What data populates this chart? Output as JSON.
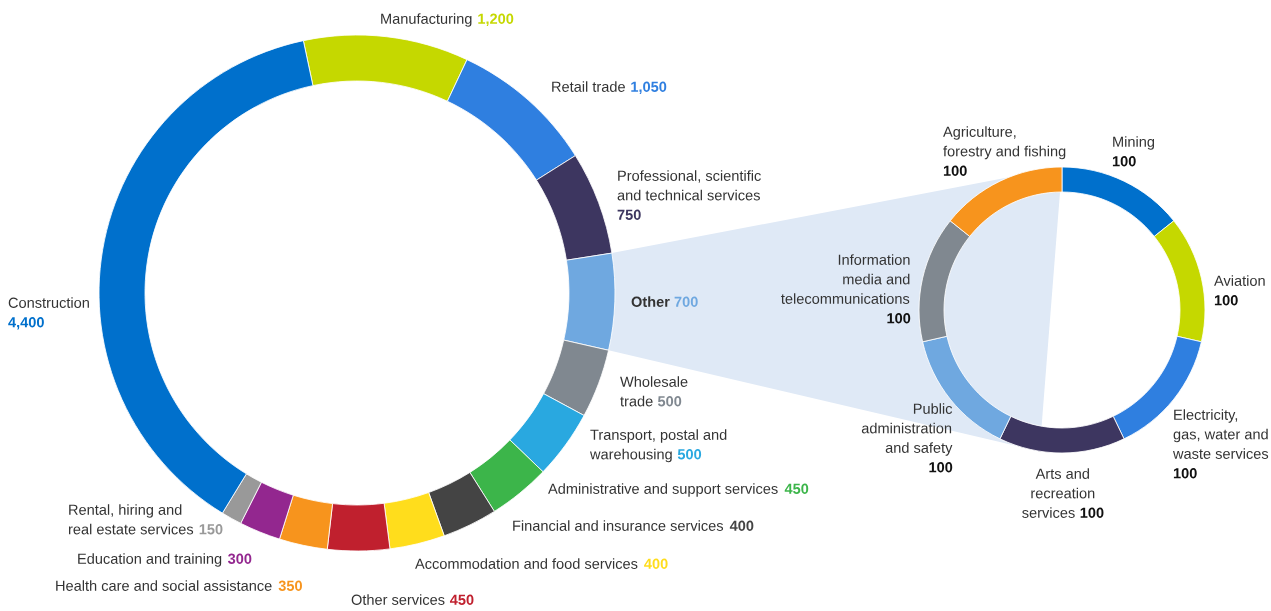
{
  "chart_data": [
    {
      "type": "donut",
      "categories": [
        "Manufacturing",
        "Retail trade",
        "Professional, scientific\nand technical services",
        "Other",
        "Wholesale\ntrade",
        "Transport, postal and\nwarehousing",
        "Administrative and support services",
        "Financial and insurance services",
        "Accommodation and food services",
        "Other services",
        "Health care and social assistance",
        "Education and training",
        "Rental, hiring and\nreal estate services",
        "Construction"
      ],
      "values": [
        1200,
        1050,
        750,
        700,
        500,
        500,
        450,
        400,
        400,
        450,
        350,
        300,
        150,
        4400
      ],
      "value_labels": [
        "1,200",
        "1,050",
        "750",
        "700",
        "500",
        "500",
        "450",
        "400",
        "400",
        "450",
        "350",
        "300",
        "150",
        "4,400"
      ],
      "colors": [
        "#c5d800",
        "#2f7fe0",
        "#3d3660",
        "#6fa8e0",
        "#808890",
        "#29a8e0",
        "#3cb54a",
        "#444444",
        "#ffdd1c",
        "#c0202e",
        "#f7941d",
        "#93278f",
        "#999999",
        "#0070cc"
      ]
    },
    {
      "type": "donut",
      "categories": [
        "Mining",
        "Aviation",
        "Electricity,\ngas, water and\nwaste services",
        "Arts and\nrecreation\nservices",
        "Public\nadministration\nand safety",
        "Information\nmedia and\ntelecommunications",
        "Agriculture,\nforestry and fishing"
      ],
      "values": [
        100,
        100,
        100,
        100,
        100,
        100,
        100
      ],
      "value_labels": [
        "100",
        "100",
        "100",
        "100",
        "100",
        "100",
        "100"
      ],
      "colors": [
        "#0070cc",
        "#c5d800",
        "#2f7fe0",
        "#3d3660",
        "#6fa8e0",
        "#808890",
        "#f7941d"
      ]
    }
  ]
}
